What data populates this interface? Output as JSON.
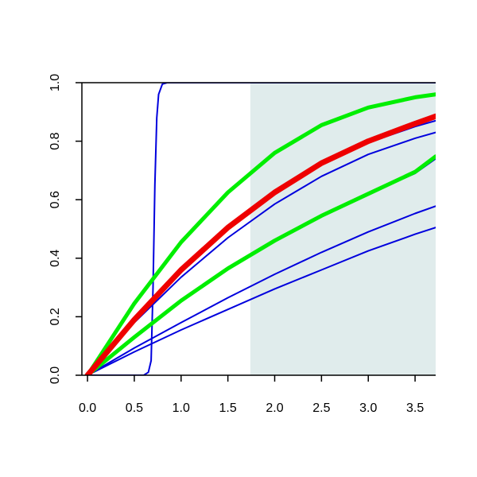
{
  "chart_data": {
    "type": "line",
    "title": "",
    "xlabel": "",
    "ylabel": "",
    "xlim": [
      -0.06,
      3.72
    ],
    "ylim": [
      0,
      1
    ],
    "grid": false,
    "legend": "none",
    "x_ticks": [
      0.0,
      0.5,
      1.0,
      1.5,
      2.0,
      2.5,
      3.0,
      3.5
    ],
    "x_tick_labels": [
      "0.0",
      "0.5",
      "1.0",
      "1.5",
      "2.0",
      "2.5",
      "3.0",
      "3.5"
    ],
    "y_ticks": [
      0.0,
      0.2,
      0.4,
      0.6,
      0.8,
      1.0
    ],
    "y_tick_labels": [
      "0.0",
      "0.2",
      "0.4",
      "0.6",
      "0.8",
      "1.0"
    ],
    "shaded_region": {
      "x_from": 1.74,
      "x_to": 3.72,
      "y_from": 0,
      "y_to": 1,
      "color": "#e0ecec"
    },
    "series": [
      {
        "color": "#0000dd",
        "width": 2,
        "x": [
          0,
          0.6,
          0.65,
          0.68,
          0.7,
          0.72,
          0.74,
          0.76,
          0.8,
          0.85,
          0.9,
          3.72
        ],
        "y": [
          0,
          0.0,
          0.01,
          0.05,
          0.3,
          0.65,
          0.88,
          0.96,
          0.995,
          1.0,
          1.0,
          1.0
        ]
      },
      {
        "color": "#0000dd",
        "width": 2,
        "x": [
          0,
          0.5,
          1,
          1.5,
          2,
          2.5,
          3,
          3.5,
          3.72
        ],
        "y": [
          0,
          0.08,
          0.155,
          0.225,
          0.295,
          0.36,
          0.425,
          0.482,
          0.505
        ]
      },
      {
        "color": "#0000dd",
        "width": 2,
        "x": [
          0,
          0.5,
          1,
          1.5,
          2,
          2.5,
          3,
          3.5,
          3.72
        ],
        "y": [
          0,
          0.093,
          0.18,
          0.265,
          0.345,
          0.42,
          0.49,
          0.553,
          0.578
        ]
      },
      {
        "color": "#0000dd",
        "width": 2,
        "x": [
          0,
          0.5,
          1,
          1.5,
          2,
          2.5,
          3,
          3.5,
          3.72
        ],
        "y": [
          0,
          0.13,
          0.255,
          0.365,
          0.46,
          0.545,
          0.62,
          0.69,
          0.74
        ]
      },
      {
        "color": "#0000dd",
        "width": 2,
        "x": [
          0,
          0.5,
          1,
          1.5,
          2,
          2.5,
          3,
          3.5,
          3.72
        ],
        "y": [
          0,
          0.18,
          0.335,
          0.47,
          0.585,
          0.68,
          0.755,
          0.81,
          0.83
        ]
      },
      {
        "color": "#0000dd",
        "width": 2,
        "x": [
          0,
          0.5,
          1,
          1.5,
          2,
          2.5,
          3,
          3.5,
          3.72
        ],
        "y": [
          0,
          0.19,
          0.355,
          0.5,
          0.62,
          0.72,
          0.795,
          0.85,
          0.87
        ]
      },
      {
        "color": "#00ee00",
        "width": 5,
        "x": [
          0,
          0.5,
          1,
          1.5,
          2,
          2.5,
          3,
          3.5,
          3.72
        ],
        "y": [
          0,
          0.13,
          0.255,
          0.365,
          0.46,
          0.545,
          0.62,
          0.695,
          0.748
        ]
      },
      {
        "color": "#00ee00",
        "width": 5,
        "x": [
          0,
          0.5,
          1,
          1.5,
          2,
          2.5,
          3,
          3.5,
          3.72
        ],
        "y": [
          0,
          0.245,
          0.455,
          0.625,
          0.76,
          0.855,
          0.915,
          0.95,
          0.96
        ]
      },
      {
        "color": "#ee0000",
        "width": 7,
        "x": [
          0,
          0.5,
          1,
          1.5,
          2,
          2.5,
          3,
          3.5,
          3.72
        ],
        "y": [
          0,
          0.19,
          0.36,
          0.505,
          0.625,
          0.725,
          0.8,
          0.86,
          0.885
        ]
      }
    ]
  }
}
